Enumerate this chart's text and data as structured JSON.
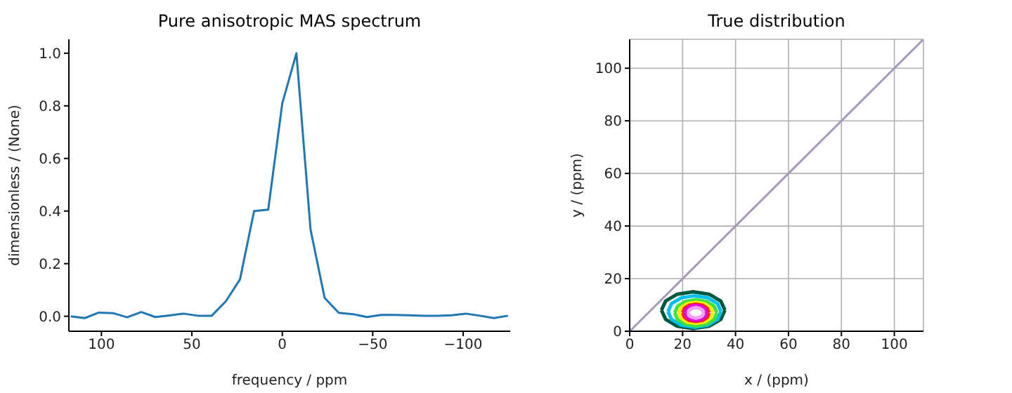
{
  "chart_data": [
    {
      "type": "line",
      "title": "Pure anisotropic MAS spectrum",
      "xlabel": "frequency / ppm",
      "ylabel": "dimensionless / (None)",
      "x": [
        117,
        109.2,
        101.4,
        93.6,
        85.8,
        78,
        70.2,
        62.4,
        54.6,
        46.8,
        39,
        31.2,
        23.4,
        15.6,
        7.8,
        0,
        -7.8,
        -15.6,
        -23.4,
        -31.2,
        -39,
        -46.8,
        -54.6,
        -62.4,
        -70.2,
        -78,
        -85.8,
        -93.6,
        -101.4,
        -109.2,
        -117,
        -124.8
      ],
      "series": [
        {
          "color": "#1f77b4",
          "values": [
            0.0,
            -0.007,
            0.014,
            0.012,
            -0.004,
            0.016,
            -0.003,
            0.003,
            0.01,
            0.002,
            0.002,
            0.057,
            0.14,
            0.4,
            0.405,
            0.81,
            1.0,
            0.33,
            0.07,
            0.013,
            0.008,
            -0.003,
            0.005,
            0.005,
            0.004,
            0.002,
            0.002,
            0.004,
            0.01,
            0.002,
            -0.007,
            0.002
          ]
        }
      ],
      "xlim": [
        118,
        -126
      ],
      "xticks": [
        100,
        50,
        0,
        {
          "value": -50,
          "label": "−50"
        },
        {
          "value": -100,
          "label": "−100"
        }
      ],
      "ylim": [
        -0.057,
        1.053
      ],
      "yticks": [
        {
          "value": 0,
          "label": "0.0"
        },
        {
          "value": 0.2,
          "label": "0.2"
        },
        {
          "value": 0.4,
          "label": "0.4"
        },
        {
          "value": 0.6,
          "label": "0.6"
        },
        {
          "value": 0.8,
          "label": "0.8"
        },
        {
          "value": 1,
          "label": "1.0"
        }
      ],
      "grid": false,
      "legend": false,
      "marker": "none",
      "line_style": "solid"
    },
    {
      "type": "line",
      "title": "True distribution",
      "xlabel": "x / (ppm)",
      "ylabel": "y / (ppm)",
      "series": [
        {
          "color": "#a898b8",
          "x": [
            0,
            111
          ],
          "values": [
            0,
            111
          ]
        },
        {
          "color": "#00573f",
          "x": [
            12,
            13.6,
            18,
            24,
            30,
            34.4,
            36
          ],
          "values": [
            8,
            11.5,
            14.1,
            15,
            14.1,
            11.5,
            8
          ]
        },
        {
          "color": "#00573f",
          "x": [
            12,
            13.6,
            18,
            24,
            30,
            34.4,
            36
          ],
          "values": [
            8,
            4.5,
            1.9,
            1,
            1.9,
            4.5,
            8
          ]
        },
        {
          "color": "#00c0f0",
          "x": [
            14.5,
            15.8,
            19.5,
            24.5,
            29.5,
            33.2,
            34.5
          ],
          "values": [
            7.5,
            10.5,
            12.7,
            13.5,
            12.7,
            10.5,
            7.5
          ]
        },
        {
          "color": "#00c0f0",
          "x": [
            14.5,
            15.8,
            19.5,
            24.5,
            29.5,
            33.2,
            34.5
          ],
          "values": [
            7.5,
            4.5,
            2.3,
            1.5,
            2.3,
            4.5,
            7.5
          ]
        },
        {
          "color": "#40e040",
          "x": [
            17,
            18.1,
            21,
            25,
            29,
            31.9,
            33
          ],
          "values": [
            7,
            9.5,
            11.3,
            12,
            11.3,
            9.5,
            7
          ]
        },
        {
          "color": "#40e040",
          "x": [
            17,
            18.1,
            21,
            25,
            29,
            31.9,
            33
          ],
          "values": [
            7,
            4.5,
            2.7,
            2,
            2.7,
            4.5,
            7
          ]
        },
        {
          "color": "#f0f000",
          "x": [
            18.5,
            19.4,
            21.7,
            25,
            28.3,
            30.6,
            31.5
          ],
          "values": [
            7,
            9,
            10.5,
            11,
            10.5,
            9,
            7
          ]
        },
        {
          "color": "#f0f000",
          "x": [
            18.5,
            19.4,
            21.7,
            25,
            28.3,
            30.6,
            31.5
          ],
          "values": [
            7,
            5,
            3.5,
            3,
            3.5,
            5,
            7
          ]
        },
        {
          "color": "#ff2020",
          "x": [
            20,
            20.7,
            22.5,
            25,
            27.5,
            29.3,
            30
          ],
          "values": [
            7,
            8.7,
            9.9,
            10.3,
            9.9,
            8.7,
            7
          ]
        },
        {
          "color": "#ff2020",
          "x": [
            20,
            20.7,
            22.5,
            25,
            27.5,
            29.3,
            30
          ],
          "values": [
            7,
            5.3,
            4.1,
            3.7,
            4.1,
            5.3,
            7
          ]
        },
        {
          "color": "#e000e0",
          "x": [
            21,
            21.5,
            23,
            25,
            27,
            28.5,
            29
          ],
          "values": [
            7,
            8.4,
            9.4,
            9.8,
            9.4,
            8.4,
            7
          ]
        },
        {
          "color": "#e000e0",
          "x": [
            21,
            21.5,
            23,
            25,
            27,
            28.5,
            29
          ],
          "values": [
            7,
            5.6,
            4.6,
            4.2,
            4.6,
            5.6,
            7
          ]
        },
        {
          "color": "#f0a0f0",
          "x": [
            22,
            22.4,
            23.5,
            25,
            26.5,
            27.6,
            28
          ],
          "values": [
            7,
            8,
            8.7,
            9,
            8.7,
            8,
            7
          ]
        },
        {
          "color": "#f0a0f0",
          "x": [
            22,
            22.4,
            23.5,
            25,
            26.5,
            27.6,
            28
          ],
          "values": [
            7,
            6,
            5.3,
            5,
            5.3,
            6,
            7
          ]
        }
      ],
      "xlim": [
        0,
        111
      ],
      "xticks": [
        0,
        20,
        40,
        60,
        80,
        100
      ],
      "ylim": [
        0,
        111
      ],
      "yticks": [
        0,
        20,
        40,
        60,
        80,
        100
      ],
      "grid": true,
      "legend": false,
      "marker": "none",
      "line_style": "solid"
    }
  ]
}
